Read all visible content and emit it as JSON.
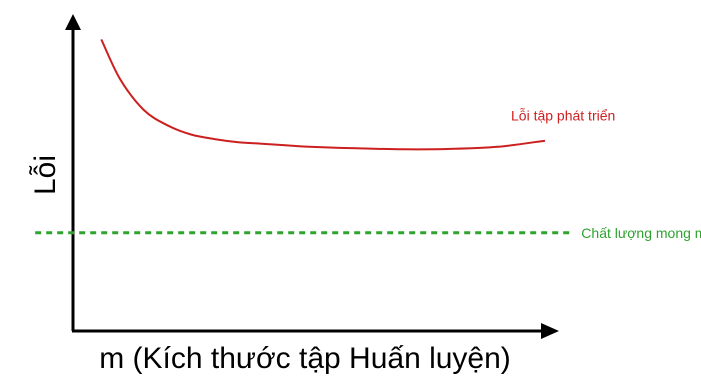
{
  "chart_data": {
    "type": "line",
    "xlabel": "m (Kích thước tập Huấn luyện)",
    "ylabel": "Lỗi",
    "xlim": [
      0,
      100
    ],
    "ylim": [
      0,
      100
    ],
    "series": [
      {
        "name": "Lỗi tập phát triển",
        "color": "#cc1f1f",
        "style": "solid",
        "x": [
          6,
          10,
          15,
          20,
          25,
          30,
          35,
          40,
          45,
          50,
          60,
          70,
          80,
          90,
          100
        ],
        "y": [
          95,
          82,
          72,
          67,
          64,
          62.5,
          61.5,
          61,
          60.5,
          60,
          59.5,
          59.2,
          59.3,
          60,
          62
        ]
      },
      {
        "name": "Chất lượng mong muốn",
        "color": "#2ea32e",
        "style": "dashed",
        "x": [
          -8,
          106
        ],
        "y": [
          32,
          32
        ]
      }
    ],
    "grid": false,
    "legend": "inline labels at right end of each line"
  }
}
